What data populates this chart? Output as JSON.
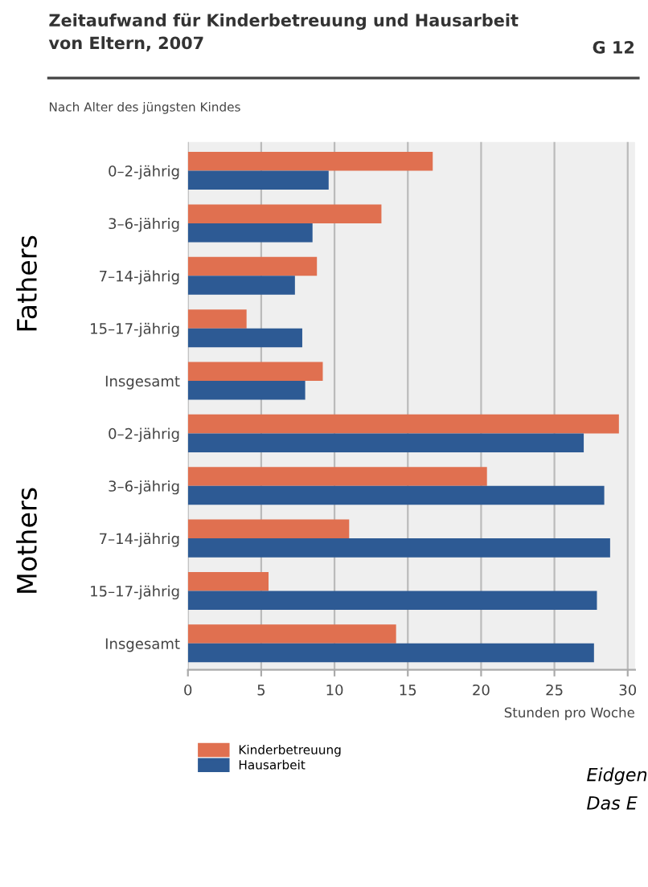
{
  "chart_data": {
    "type": "bar",
    "orientation": "horizontal",
    "title": "Zeitaufwand für Kinderbetreuung und Hausarbeit\nvon Eltern, 2007",
    "subtitle": "Nach Alter des jüngsten Kindes",
    "xlabel": "Stunden pro Woche",
    "categories": [
      "0–2-jährig",
      "3–6-jährig",
      "7–14-jährig",
      "15–17-jährig",
      "Insgesamt",
      "0–2-jährig",
      "3–6-jährig",
      "7–14-jährig",
      "15–17-jährig",
      "Insgesamt"
    ],
    "series": [
      {
        "name": "Kinderbetreuung",
        "color": "#e07050",
        "values": [
          16.7,
          13.2,
          8.8,
          4.0,
          9.2,
          29.4,
          20.4,
          11.0,
          5.5,
          14.2
        ]
      },
      {
        "name": "Hausarbeit",
        "color": "#2d5a94",
        "values": [
          9.6,
          8.5,
          7.3,
          7.8,
          8.0,
          27.0,
          28.4,
          28.8,
          27.9,
          27.7
        ]
      }
    ],
    "xlim": [
      0,
      30.5
    ],
    "xticks": [
      0,
      5,
      10,
      15,
      20,
      25,
      30
    ],
    "grid": "x",
    "legend": "bottom left",
    "annotations": [
      "G 12",
      "Fathers",
      "Mothers",
      "Eidgen",
      "Das E"
    ]
  }
}
